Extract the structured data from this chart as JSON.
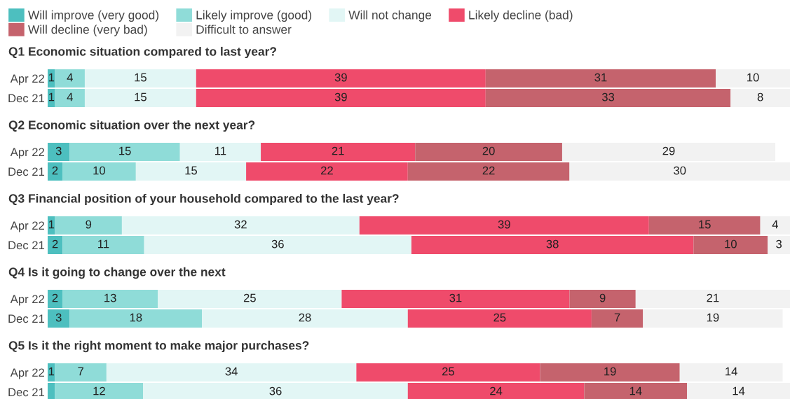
{
  "chart_data": [
    {
      "type": "bar",
      "orientation": "horizontal",
      "stacked": true,
      "title": "Q1 Economic situation compared to last year?",
      "categories": [
        "Apr 22",
        "Dec 21"
      ],
      "tick_labels": "y",
      "grid": false,
      "legend": "top",
      "data_labels": true,
      "series": [
        {
          "name": "Will improve (very good)",
          "color": "#4dbfbf",
          "values": [
            1,
            1
          ]
        },
        {
          "name": "Likely improve (good)",
          "color": "#8fdcd8",
          "values": [
            4,
            4
          ]
        },
        {
          "name": "Will not change",
          "color": "#e2f6f5",
          "values": [
            15,
            15
          ]
        },
        {
          "name": "Likely decline (bad)",
          "color": "#ef4b6b",
          "values": [
            39,
            39
          ]
        },
        {
          "name": "Will decline (very bad)",
          "color": "#c5636d",
          "values": [
            31,
            33
          ]
        },
        {
          "name": "Difficult to answer",
          "color": "#f2f2f2",
          "values": [
            10,
            8
          ]
        }
      ]
    },
    {
      "type": "bar",
      "orientation": "horizontal",
      "stacked": true,
      "title": "Q2 Economic situation over the next year?",
      "categories": [
        "Apr 22",
        "Dec 21"
      ],
      "tick_labels": "y",
      "grid": false,
      "data_labels": true,
      "series": [
        {
          "color": "#4dbfbf",
          "values": [
            3,
            2
          ]
        },
        {
          "color": "#8fdcd8",
          "values": [
            15,
            10
          ]
        },
        {
          "color": "#e2f6f5",
          "values": [
            11,
            15
          ]
        },
        {
          "color": "#ef4b6b",
          "values": [
            21,
            22
          ]
        },
        {
          "color": "#c5636d",
          "values": [
            20,
            22
          ]
        },
        {
          "color": "#f2f2f2",
          "values": [
            29,
            30
          ]
        }
      ]
    },
    {
      "type": "bar",
      "orientation": "horizontal",
      "stacked": true,
      "title": "Q3 Financial position of your household compared to the last year?",
      "categories": [
        "Apr 22",
        "Dec 21"
      ],
      "tick_labels": "y",
      "grid": false,
      "data_labels": true,
      "series": [
        {
          "color": "#4dbfbf",
          "values": [
            1,
            2
          ]
        },
        {
          "color": "#8fdcd8",
          "values": [
            9,
            11
          ]
        },
        {
          "color": "#e2f6f5",
          "values": [
            32,
            36
          ]
        },
        {
          "color": "#ef4b6b",
          "values": [
            39,
            38
          ]
        },
        {
          "color": "#c5636d",
          "values": [
            15,
            10
          ]
        },
        {
          "color": "#f2f2f2",
          "values": [
            4,
            3
          ]
        }
      ]
    },
    {
      "type": "bar",
      "orientation": "horizontal",
      "stacked": true,
      "title": "Q4 Is it going to change over the next",
      "categories": [
        "Apr 22",
        "Dec 21"
      ],
      "tick_labels": "y",
      "grid": false,
      "data_labels": true,
      "series": [
        {
          "color": "#4dbfbf",
          "values": [
            2,
            3
          ]
        },
        {
          "color": "#8fdcd8",
          "values": [
            13,
            18
          ]
        },
        {
          "color": "#e2f6f5",
          "values": [
            25,
            28
          ]
        },
        {
          "color": "#ef4b6b",
          "values": [
            31,
            25
          ]
        },
        {
          "color": "#c5636d",
          "values": [
            9,
            7
          ]
        },
        {
          "color": "#f2f2f2",
          "values": [
            21,
            19
          ]
        }
      ]
    },
    {
      "type": "bar",
      "orientation": "horizontal",
      "stacked": true,
      "title": "Q5 Is it the right moment to make major purchases?",
      "categories": [
        "Apr 22",
        "Dec 21"
      ],
      "tick_labels": "y",
      "grid": false,
      "series": [
        {
          "color": "#4dbfbf",
          "values": [
            1,
            1
          ],
          "value_labels": [
            "1",
            null
          ]
        },
        {
          "color": "#8fdcd8",
          "values": [
            7,
            12
          ],
          "value_labels": [
            "7",
            "12"
          ]
        },
        {
          "color": "#e2f6f5",
          "values": [
            34,
            36
          ],
          "value_labels": [
            "34",
            "36"
          ]
        },
        {
          "color": "#ef4b6b",
          "values": [
            25,
            24
          ],
          "value_labels": [
            "25",
            "24"
          ]
        },
        {
          "color": "#c5636d",
          "values": [
            19,
            14
          ],
          "value_labels": [
            "19",
            "14"
          ]
        },
        {
          "color": "#f2f2f2",
          "values": [
            14,
            14
          ],
          "value_labels": [
            "14",
            "14"
          ]
        }
      ]
    }
  ]
}
